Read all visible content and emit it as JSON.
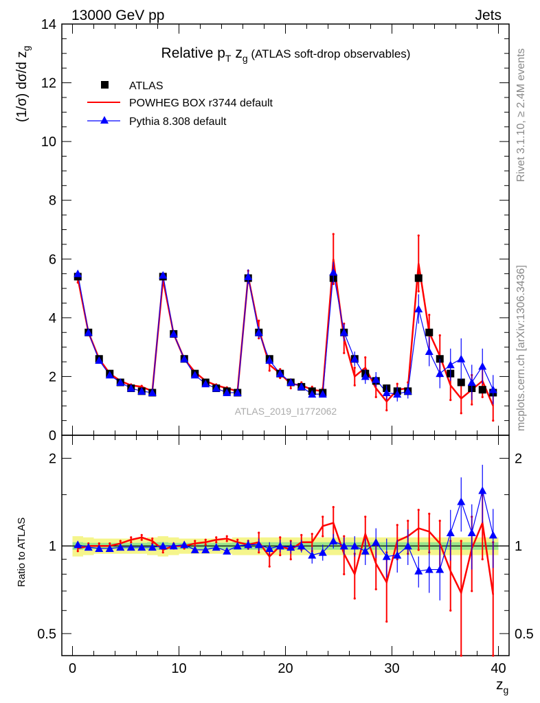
{
  "header": {
    "left": "13000 GeV pp",
    "right": "Jets"
  },
  "side": {
    "rivet": "Rivet 3.1.10, ≥ 2.4M events",
    "mcplots": "mcplots.cern.ch [arXiv:1306.3436]"
  },
  "chart_data": [
    {
      "type": "scatter",
      "panel": "main",
      "title_main": "Relative p",
      "title_sub": "T",
      "title_rest": " z",
      "title_sub2": "g",
      "title_tail": " (ATLAS soft-drop observables)",
      "ylabel": "(1/σ) dσ/d z",
      "ylabel_sub": "g",
      "watermark": "ATLAS_2019_I1772062",
      "xlim": [
        -1,
        41
      ],
      "ylim": [
        0,
        14
      ],
      "yticks": [
        0,
        2,
        4,
        6,
        8,
        10,
        12,
        14
      ],
      "legend": [
        {
          "label": "ATLAS",
          "color": "#000000",
          "style": "square"
        },
        {
          "label": "POWHEG BOX r3744 default",
          "color": "#ff0000",
          "style": "line"
        },
        {
          "label": "Pythia 8.308 default",
          "color": "#0000ff",
          "style": "triangle"
        }
      ],
      "series": [
        {
          "name": "ATLAS",
          "color": "#000000",
          "x": [
            0.5,
            1.5,
            2.5,
            3.5,
            4.5,
            5.5,
            6.5,
            7.5,
            8.5,
            9.5,
            10.5,
            11.5,
            12.5,
            13.5,
            14.5,
            15.5,
            16.5,
            17.5,
            18.5,
            19.5,
            20.5,
            21.5,
            22.5,
            23.5,
            24.5,
            25.5,
            26.5,
            27.5,
            28.5,
            29.5,
            30.5,
            31.5,
            32.5,
            33.5,
            34.5,
            35.5,
            36.5,
            37.5,
            38.5,
            39.5
          ],
          "y": [
            5.4,
            3.5,
            2.6,
            2.1,
            1.8,
            1.6,
            1.5,
            1.45,
            5.4,
            3.45,
            2.6,
            2.1,
            1.8,
            1.6,
            1.5,
            1.45,
            5.35,
            3.5,
            2.6,
            2.1,
            1.8,
            1.65,
            1.5,
            1.45,
            5.35,
            3.5,
            2.6,
            2.1,
            1.85,
            1.6,
            1.5,
            1.5,
            5.35,
            3.5,
            2.6,
            2.1,
            1.8,
            1.6,
            1.55,
            1.45
          ]
        },
        {
          "name": "POWHEG BOX r3744 default",
          "color": "#ff0000",
          "x": [
            0.5,
            1.5,
            2.5,
            3.5,
            4.5,
            5.5,
            6.5,
            7.5,
            8.5,
            9.5,
            10.5,
            11.5,
            12.5,
            13.5,
            14.5,
            15.5,
            16.5,
            17.5,
            18.5,
            19.5,
            20.5,
            21.5,
            22.5,
            23.5,
            24.5,
            25.5,
            26.5,
            27.5,
            28.5,
            29.5,
            30.5,
            31.5,
            32.5,
            33.5,
            34.5,
            35.5,
            36.5,
            37.5,
            38.5,
            39.5
          ],
          "y": [
            5.35,
            3.5,
            2.6,
            2.1,
            1.85,
            1.7,
            1.65,
            1.5,
            5.3,
            3.45,
            2.6,
            2.15,
            1.85,
            1.7,
            1.6,
            1.5,
            5.4,
            3.6,
            2.4,
            2.1,
            1.75,
            1.7,
            1.55,
            1.5,
            6.0,
            3.3,
            2.0,
            2.3,
            1.6,
            1.15,
            1.55,
            1.6,
            5.85,
            3.5,
            2.7,
            1.7,
            1.25,
            1.55,
            1.85,
            1.0
          ],
          "err": [
            0.15,
            0.08,
            0.05,
            0.04,
            0.04,
            0.03,
            0.03,
            0.03,
            0.15,
            0.08,
            0.05,
            0.04,
            0.04,
            0.03,
            0.03,
            0.03,
            0.2,
            0.3,
            0.2,
            0.15,
            0.15,
            0.1,
            0.1,
            0.1,
            0.85,
            0.5,
            0.3,
            0.35,
            0.3,
            0.3,
            0.2,
            0.2,
            0.95,
            0.6,
            0.7,
            0.5,
            0.5,
            0.5,
            0.55,
            0.5
          ]
        },
        {
          "name": "Pythia 8.308 default",
          "color": "#0000ff",
          "x": [
            0.5,
            1.5,
            2.5,
            3.5,
            4.5,
            5.5,
            6.5,
            7.5,
            8.5,
            9.5,
            10.5,
            11.5,
            12.5,
            13.5,
            14.5,
            15.5,
            16.5,
            17.5,
            18.5,
            19.5,
            20.5,
            21.5,
            22.5,
            23.5,
            24.5,
            25.5,
            26.5,
            27.5,
            28.5,
            29.5,
            30.5,
            31.5,
            32.5,
            33.5,
            34.5,
            35.5,
            36.5,
            37.5,
            38.5,
            39.5
          ],
          "y": [
            5.5,
            3.5,
            2.55,
            2.05,
            1.8,
            1.6,
            1.5,
            1.45,
            5.45,
            3.45,
            2.6,
            2.05,
            1.75,
            1.6,
            1.45,
            1.45,
            5.4,
            3.5,
            2.55,
            2.1,
            1.8,
            1.65,
            1.4,
            1.4,
            5.55,
            3.5,
            2.6,
            2.0,
            1.9,
            1.45,
            1.4,
            1.5,
            4.3,
            2.85,
            2.1,
            2.4,
            2.6,
            1.8,
            2.35,
            1.55
          ],
          "err": [
            0.1,
            0.06,
            0.04,
            0.04,
            0.03,
            0.03,
            0.03,
            0.03,
            0.1,
            0.06,
            0.04,
            0.04,
            0.03,
            0.03,
            0.03,
            0.03,
            0.25,
            0.2,
            0.15,
            0.12,
            0.12,
            0.1,
            0.1,
            0.1,
            0.35,
            0.3,
            0.25,
            0.25,
            0.25,
            0.25,
            0.25,
            0.25,
            0.5,
            0.5,
            0.5,
            0.55,
            0.7,
            0.6,
            0.6,
            0.5
          ]
        }
      ]
    },
    {
      "type": "scatter",
      "panel": "ratio",
      "ylabel": "Ratio to ATLAS",
      "xlabel": "z",
      "xlabel_sub": "g",
      "xlim": [
        -1,
        41
      ],
      "ylim": [
        0.42,
        2.4
      ],
      "xticks": [
        0,
        10,
        20,
        30,
        40
      ],
      "yticks": [
        0.5,
        1,
        2
      ],
      "ytick_labels": [
        "0.5",
        "1",
        "2"
      ],
      "band_inner": [
        0.03,
        0.025,
        0.025,
        0.025,
        0.025,
        0.025,
        0.025,
        0.03,
        0.03,
        0.025,
        0.025,
        0.025,
        0.025,
        0.025,
        0.025,
        0.03,
        0.03,
        0.03,
        0.03,
        0.03,
        0.03,
        0.03,
        0.03,
        0.03,
        0.03,
        0.03,
        0.03,
        0.03,
        0.03,
        0.03,
        0.03,
        0.03,
        0.03,
        0.03,
        0.03,
        0.03,
        0.03,
        0.03,
        0.03,
        0.03
      ],
      "band_outer": [
        0.08,
        0.07,
        0.06,
        0.06,
        0.06,
        0.06,
        0.06,
        0.07,
        0.08,
        0.07,
        0.06,
        0.06,
        0.06,
        0.06,
        0.06,
        0.07,
        0.07,
        0.07,
        0.07,
        0.07,
        0.07,
        0.07,
        0.07,
        0.07,
        0.07,
        0.07,
        0.07,
        0.07,
        0.07,
        0.07,
        0.07,
        0.07,
        0.07,
        0.07,
        0.07,
        0.07,
        0.07,
        0.07,
        0.07,
        0.07
      ],
      "series": [
        {
          "name": "POWHEG BOX r3744 default",
          "color": "#ff0000",
          "x": [
            0.5,
            1.5,
            2.5,
            3.5,
            4.5,
            5.5,
            6.5,
            7.5,
            8.5,
            9.5,
            10.5,
            11.5,
            12.5,
            13.5,
            14.5,
            15.5,
            16.5,
            17.5,
            18.5,
            19.5,
            20.5,
            21.5,
            22.5,
            23.5,
            24.5,
            25.5,
            26.5,
            27.5,
            28.5,
            29.5,
            30.5,
            31.5,
            32.5,
            33.5,
            34.5,
            35.5,
            36.5,
            37.5,
            38.5,
            39.5
          ],
          "y": [
            0.98,
            1.0,
            1.0,
            1.0,
            1.02,
            1.05,
            1.07,
            1.04,
            0.97,
            1.0,
            1.0,
            1.02,
            1.03,
            1.05,
            1.06,
            1.03,
            1.01,
            1.03,
            0.92,
            1.0,
            0.97,
            1.03,
            1.03,
            1.17,
            1.2,
            0.94,
            0.8,
            1.1,
            0.87,
            0.75,
            1.04,
            1.08,
            1.15,
            1.12,
            1.02,
            0.82,
            0.69,
            0.98,
            1.2,
            0.68
          ],
          "err": [
            0.02,
            0.02,
            0.02,
            0.02,
            0.02,
            0.02,
            0.02,
            0.02,
            0.02,
            0.02,
            0.02,
            0.02,
            0.02,
            0.02,
            0.02,
            0.02,
            0.03,
            0.08,
            0.07,
            0.07,
            0.07,
            0.06,
            0.07,
            0.09,
            0.16,
            0.14,
            0.14,
            0.16,
            0.16,
            0.2,
            0.14,
            0.14,
            0.18,
            0.17,
            0.2,
            0.22,
            0.35,
            0.28,
            0.3,
            0.35
          ]
        },
        {
          "name": "Pythia 8.308 default",
          "color": "#0000ff",
          "x": [
            0.5,
            1.5,
            2.5,
            3.5,
            4.5,
            5.5,
            6.5,
            7.5,
            8.5,
            9.5,
            10.5,
            11.5,
            12.5,
            13.5,
            14.5,
            15.5,
            16.5,
            17.5,
            18.5,
            19.5,
            20.5,
            21.5,
            22.5,
            23.5,
            24.5,
            25.5,
            26.5,
            27.5,
            28.5,
            29.5,
            30.5,
            31.5,
            32.5,
            33.5,
            34.5,
            35.5,
            36.5,
            37.5,
            38.5,
            39.5
          ],
          "y": [
            1.01,
            0.99,
            0.98,
            0.98,
            0.99,
            0.99,
            0.99,
            0.99,
            1.0,
            1.0,
            1.01,
            0.97,
            0.97,
            0.99,
            0.96,
            1.0,
            1.01,
            1.01,
            0.98,
            1.0,
            0.99,
            1.0,
            0.93,
            0.95,
            1.04,
            1.0,
            1.0,
            0.96,
            1.03,
            0.92,
            0.93,
            1.0,
            0.82,
            0.83,
            0.83,
            1.11,
            1.42,
            1.11,
            1.55,
            1.09
          ],
          "err": [
            0.02,
            0.02,
            0.02,
            0.02,
            0.02,
            0.02,
            0.02,
            0.02,
            0.02,
            0.02,
            0.02,
            0.02,
            0.02,
            0.02,
            0.02,
            0.02,
            0.04,
            0.05,
            0.05,
            0.05,
            0.05,
            0.05,
            0.06,
            0.06,
            0.06,
            0.07,
            0.08,
            0.1,
            0.12,
            0.14,
            0.12,
            0.14,
            0.1,
            0.14,
            0.18,
            0.22,
            0.3,
            0.28,
            0.35,
            0.25
          ]
        }
      ]
    }
  ]
}
